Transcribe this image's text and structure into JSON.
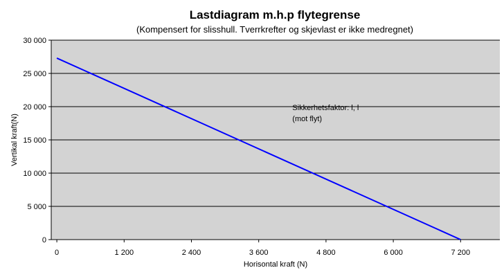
{
  "chart_data": {
    "type": "line",
    "title": "Lastdiagram m.h.p flytegrense",
    "subtitle": "(Kompensert for slisshull. Tverrkrefter og skjevlast er ikke medregnet)",
    "xlabel": "Horisontal kraft (N)",
    "ylabel": "Vertikal kraft(N)",
    "xlim": [
      -100,
      7900
    ],
    "ylim": [
      0,
      30000
    ],
    "xticks": [
      0,
      1200,
      2400,
      3600,
      4800,
      6000,
      7200
    ],
    "xtick_labels": [
      "0",
      "1 200",
      "2 400",
      "3 600",
      "4 800",
      "6 000",
      "7 200"
    ],
    "yticks": [
      0,
      5000,
      10000,
      15000,
      20000,
      25000,
      30000
    ],
    "ytick_labels": [
      "0",
      "5 000",
      "10 000",
      "15 000",
      "20 000",
      "25 000",
      "30 000"
    ],
    "grid": "horizontal",
    "legend": "none",
    "colors": {
      "plot_background": "#d3d3d3",
      "line": "#0000ff",
      "grid": "#000000"
    },
    "series": [
      {
        "x": [
          0,
          7200
        ],
        "y": [
          27300,
          0
        ]
      }
    ],
    "annotations": [
      {
        "lines": [
          "Sikkerhetsfaktor: l, l",
          "(mot flyt)"
        ],
        "x": 4200,
        "y": 19500
      }
    ]
  }
}
